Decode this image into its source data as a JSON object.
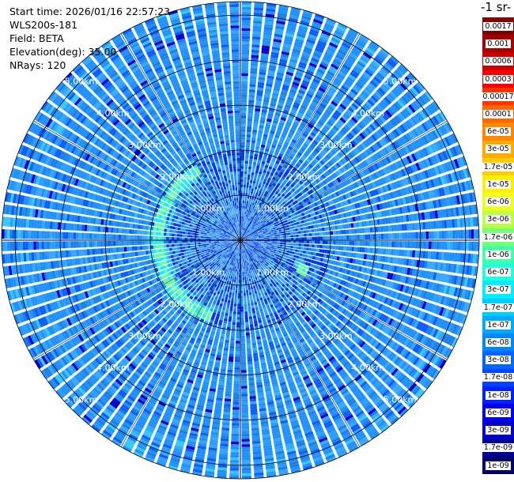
{
  "info": {
    "start_time": "Start time: 2026/01/16 22:57:23",
    "instrument": "WLS200s-181",
    "field": "Field: BETA",
    "elevation": "Elevation(deg): 35.00",
    "nrays": "NRays: 120"
  },
  "colorbar": {
    "title": "-1 sr-",
    "labels": [
      "0.0017",
      "0.001",
      "0.0006",
      "0.0003",
      "0.00017",
      "0.0001",
      "6e-05",
      "3e-05",
      "1.7e-05",
      "1e-05",
      "6e-06",
      "3e-06",
      "1.7e-06",
      "1e-06",
      "6e-07",
      "3e-07",
      "1.7e-07",
      "1e-07",
      "6e-08",
      "3e-08",
      "1.7e-08",
      "1e-08",
      "6e-09",
      "3e-09",
      "1.7e-09",
      "1e-09"
    ],
    "colors": [
      "#7f0000",
      "#a00000",
      "#cc0000",
      "#ff0000",
      "#ff3300",
      "#ff6600",
      "#ff8800",
      "#ffaa00",
      "#ffcc00",
      "#ffee00",
      "#eeff22",
      "#bbff44",
      "#77ff77",
      "#44ffaa",
      "#22ffdd",
      "#00eeff",
      "#00ccff",
      "#00aaff",
      "#0088ff",
      "#0066ff",
      "#0044ff",
      "#0022ff",
      "#0000ee",
      "#0000cc",
      "#000099",
      "#000066"
    ]
  },
  "chart_data": {
    "type": "heatmap",
    "projection": "polar PPI",
    "field": "BETA",
    "elevation_deg": 35.0,
    "n_rays": 120,
    "range_rings_km": [
      1,
      2,
      3,
      4,
      5
    ],
    "range_ring_labels": [
      "1.00km",
      "2.00km",
      "3.00km",
      "4.00km",
      "5.00km"
    ],
    "max_range_km": 5.3,
    "color_scale": "log",
    "value_range": [
      1e-09,
      0.0017
    ],
    "dominant_value": "approx 1e-07 to 6e-08",
    "features": [
      {
        "name": "arc",
        "azimuth_deg": [
          200,
          330
        ],
        "range_km": 1.8,
        "value": "approx 1.7e-06"
      },
      {
        "name": "patch",
        "azimuth_deg": [
          110,
          120
        ],
        "range_km": 1.5,
        "value": "approx 1.7e-06"
      }
    ]
  }
}
